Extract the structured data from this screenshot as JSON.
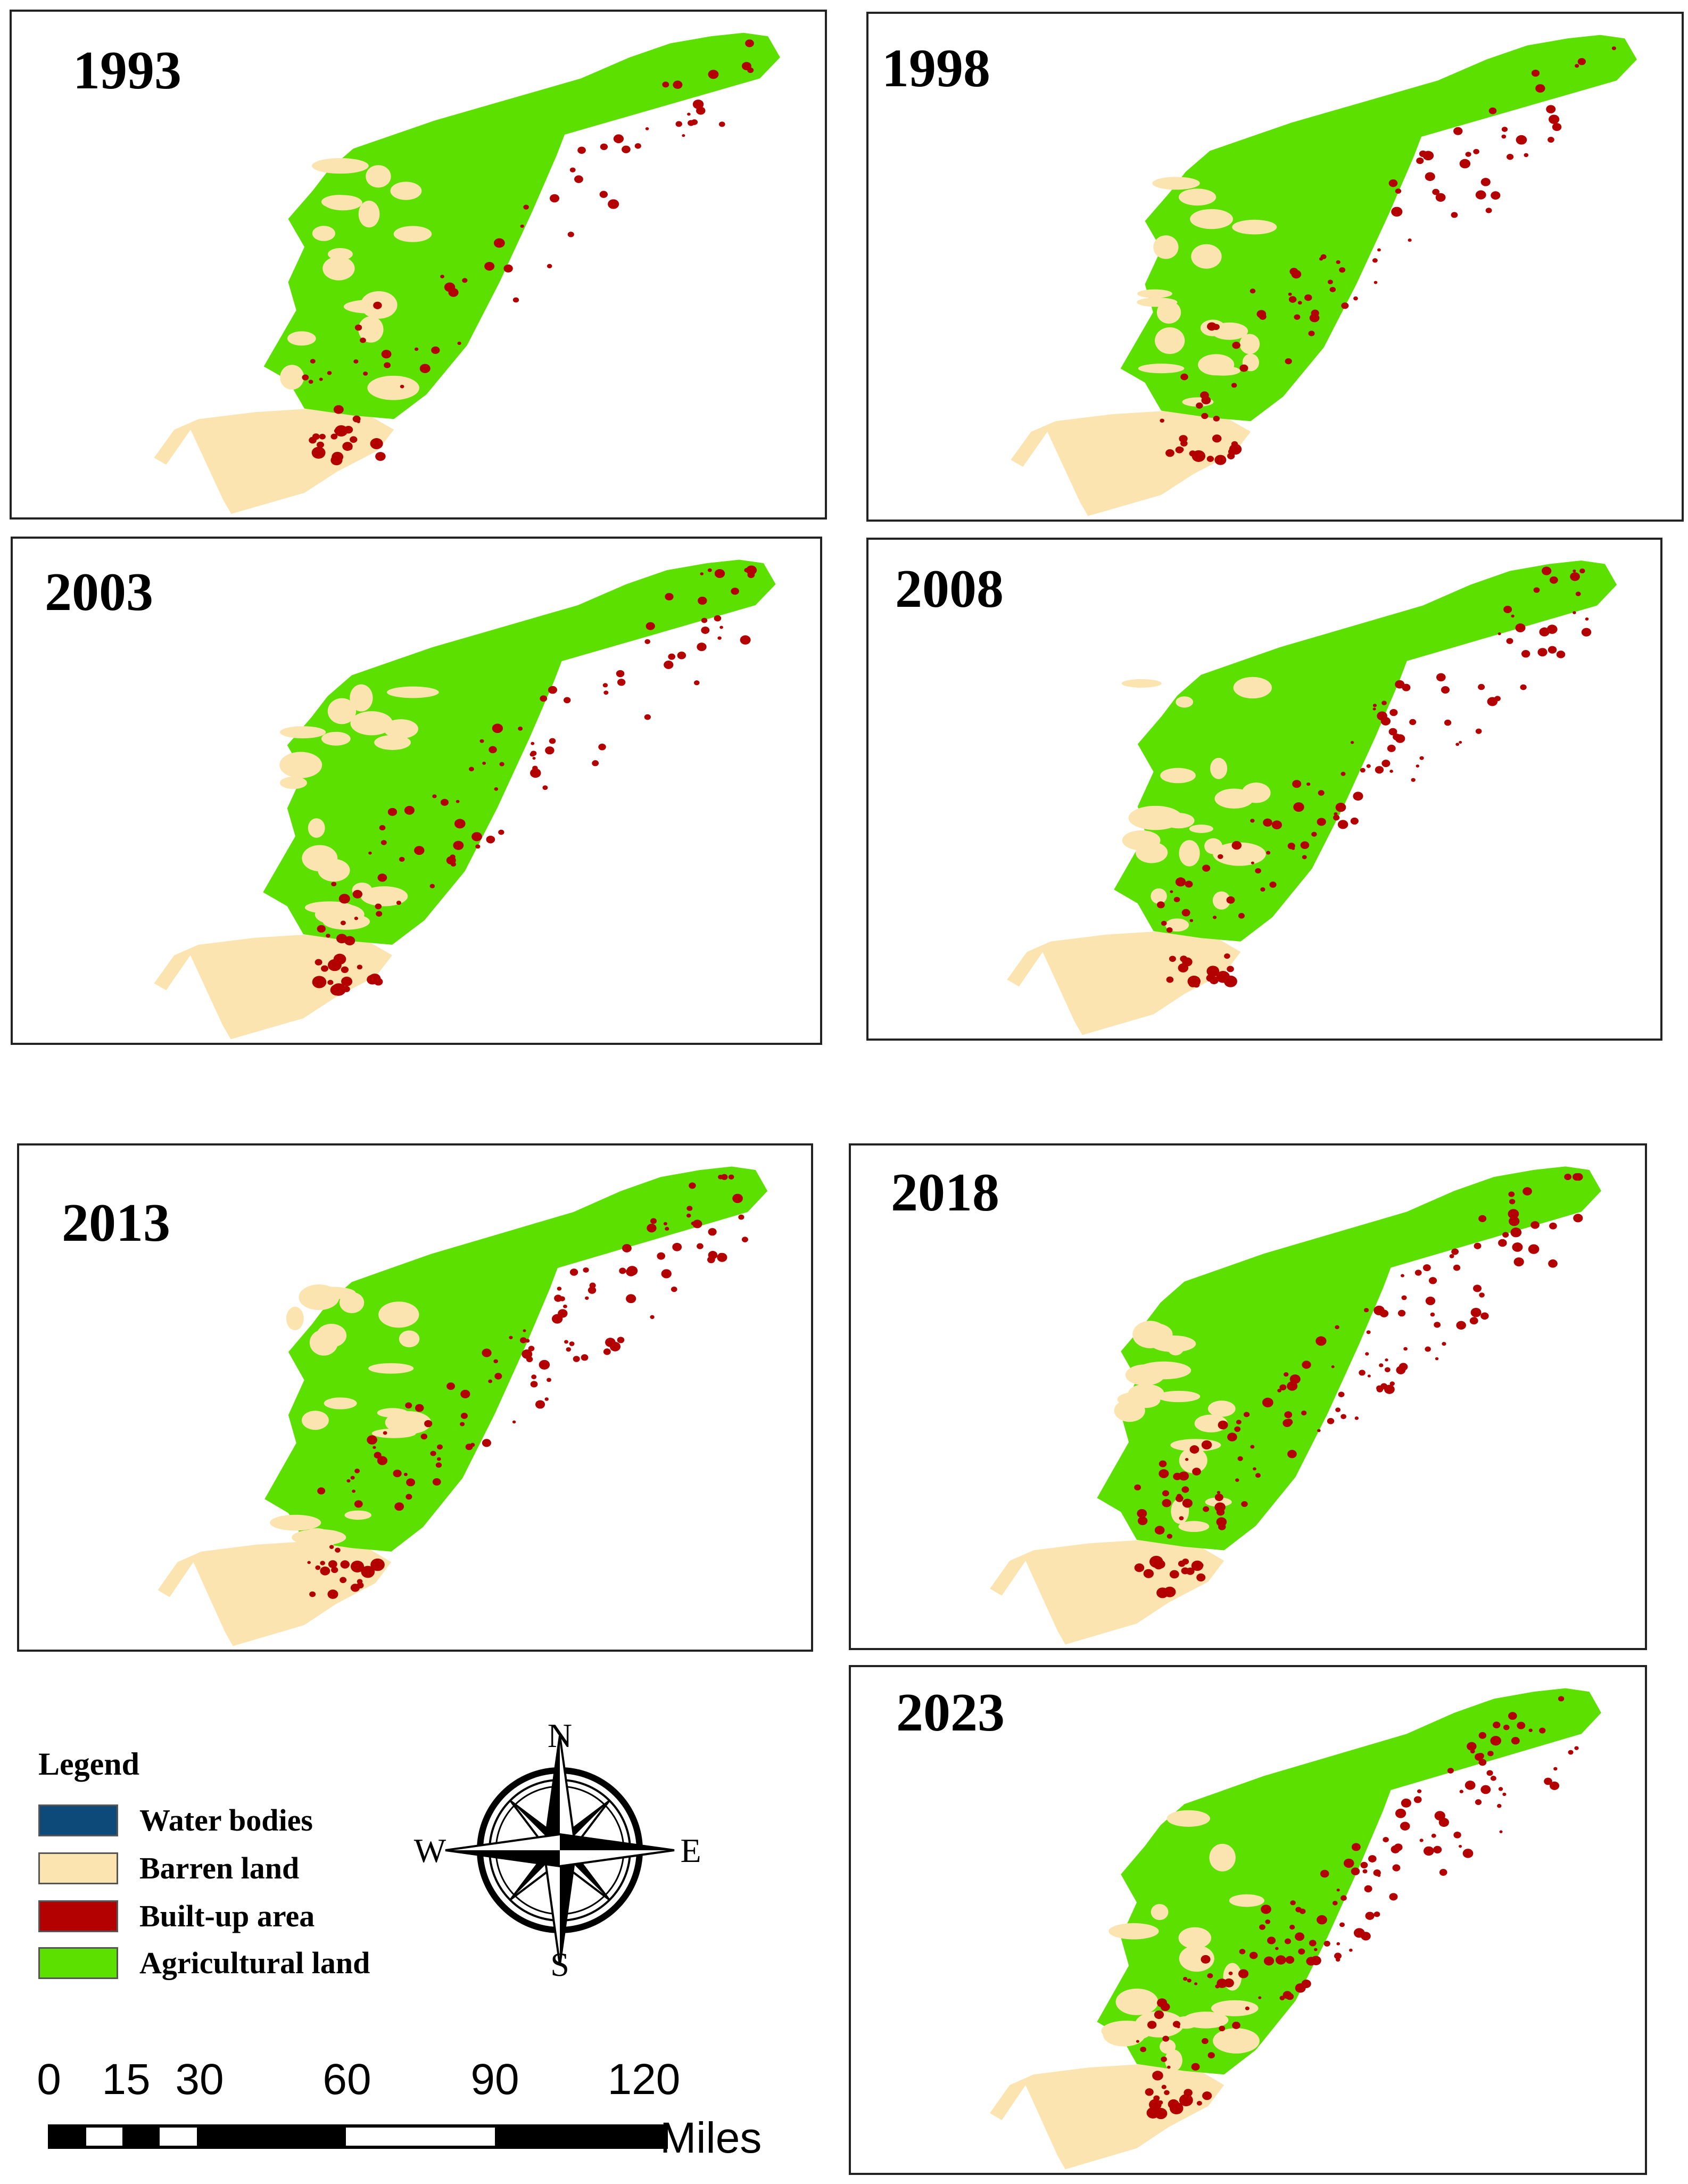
{
  "panels": [
    {
      "year": "1993"
    },
    {
      "year": "1998"
    },
    {
      "year": "2003"
    },
    {
      "year": "2008"
    },
    {
      "year": "2013"
    },
    {
      "year": "2018"
    },
    {
      "year": "2023"
    }
  ],
  "legend": {
    "title": "Legend",
    "items": [
      {
        "label": "Water bodies",
        "color": "#0d4a7a"
      },
      {
        "label": "Barren land",
        "color": "#fce4b0"
      },
      {
        "label": "Built-up area",
        "color": "#b30000"
      },
      {
        "label": "Agricultural land",
        "color": "#5ce000"
      }
    ]
  },
  "compass": {
    "north": "N",
    "south": "S",
    "east": "E",
    "west": "W"
  },
  "scale_bar": {
    "ticks": [
      "0",
      "15",
      "30",
      "60",
      "90",
      "120"
    ],
    "unit": "Miles"
  }
}
